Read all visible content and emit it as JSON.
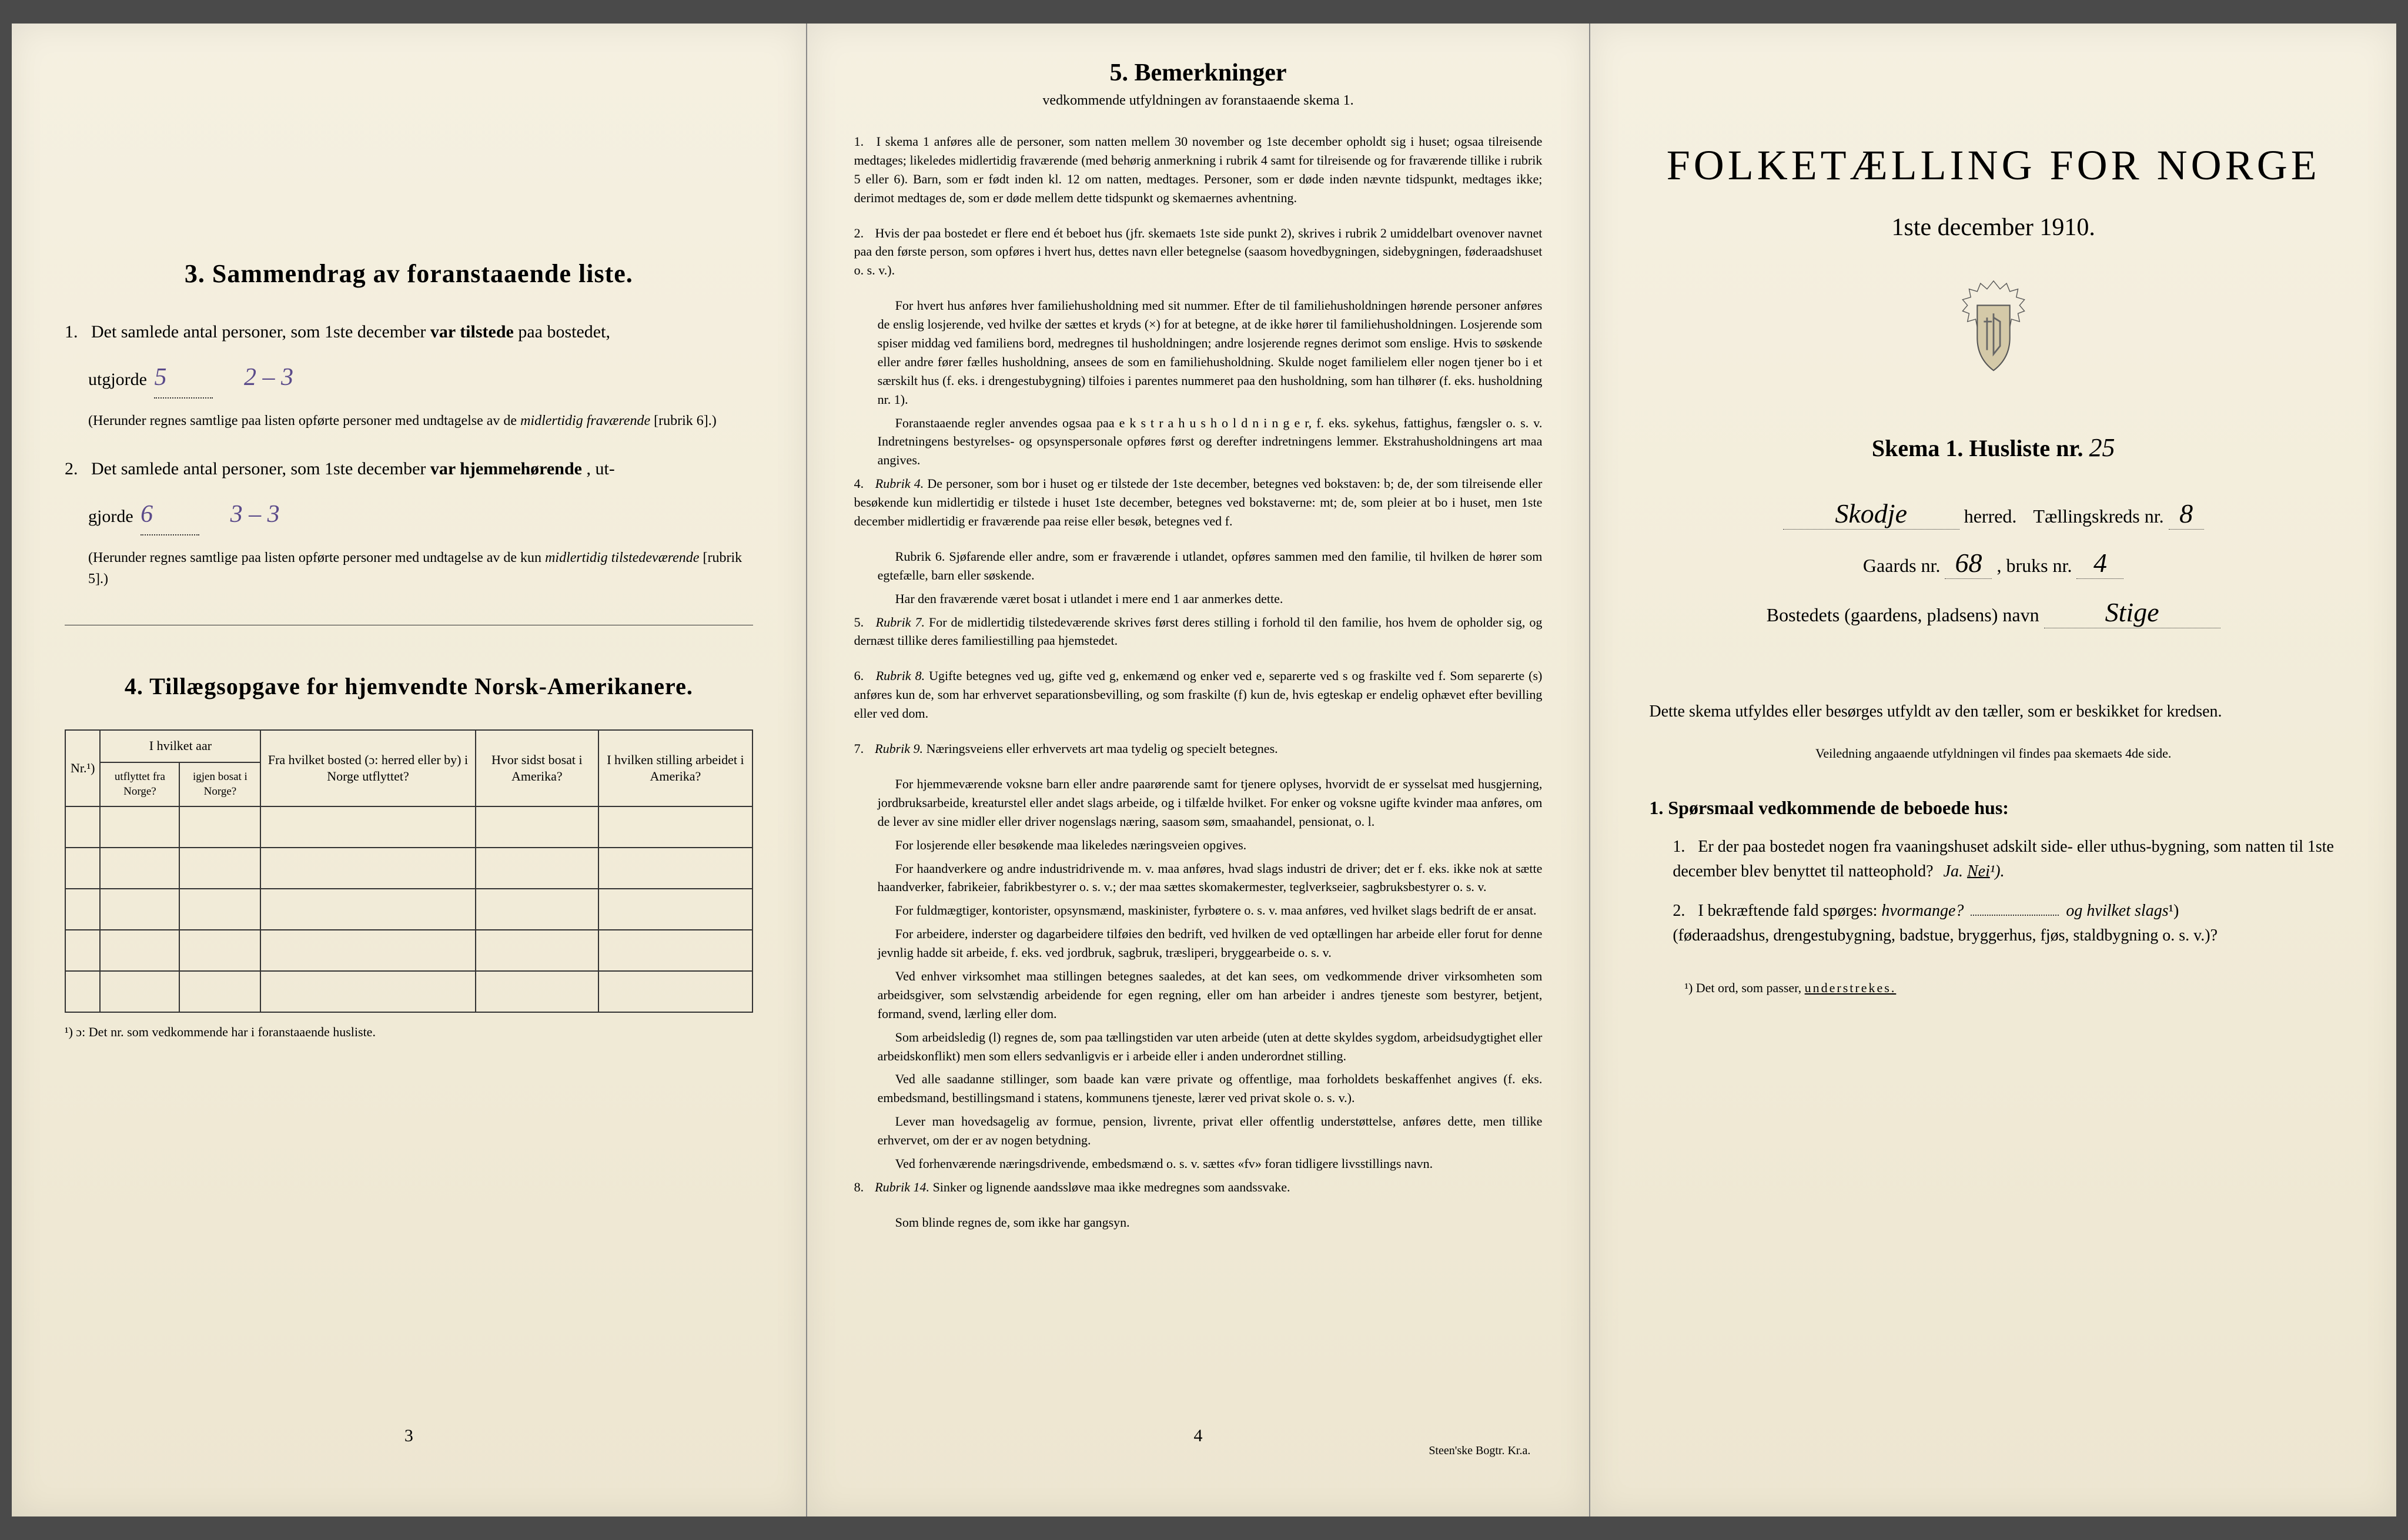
{
  "colors": {
    "paper": "#f2ecd9",
    "ink": "#1a1a1a",
    "handwriting": "#5a4a8a"
  },
  "left": {
    "section3": {
      "header": "3.   Sammendrag av foranstaaende liste.",
      "q1_prefix": "1.",
      "q1_text_a": "Det samlede antal personer, som 1ste december ",
      "q1_emphasis": "var tilstede",
      "q1_text_b": " paa bostedet,",
      "q1_line2": "utgjorde ",
      "q1_value": "5",
      "q1_hand2": "2 – 3",
      "q1_note": "(Herunder regnes samtlige paa listen opførte personer med undtagelse av de ",
      "q1_note_it": "midlertidig fraværende",
      "q1_note_end": " [rubrik 6].)",
      "q2_prefix": "2.",
      "q2_text_a": "Det samlede antal personer, som 1ste december ",
      "q2_emphasis": "var hjemmehørende",
      "q2_text_b": ", ut-",
      "q2_line2": "gjorde ",
      "q2_value": "6",
      "q2_hand2": "3 – 3",
      "q2_note": "(Herunder regnes samtlige paa listen opførte personer med undtagelse av de kun ",
      "q2_note_it": "midlertidig tilstedeværende",
      "q2_note_end": " [rubrik 5].)"
    },
    "section4": {
      "header": "4.  Tillægsopgave for hjemvendte Norsk-Amerikanere.",
      "th_nr": "Nr.¹)",
      "th_year_group": "I hvilket aar",
      "th_utflyttet": "utflyttet fra Norge?",
      "th_igjen": "igjen bosat i Norge?",
      "th_bosted": "Fra hvilket bosted (ɔ: herred eller by) i Norge utflyttet?",
      "th_sidst": "Hvor sidst bosat i Amerika?",
      "th_stilling": "I hvilken stilling arbeidet i Amerika?",
      "footnote": "¹) ɔ: Det nr. som vedkommende har i foranstaaende husliste.",
      "empty_rows": 5
    },
    "page_num": "3"
  },
  "middle": {
    "title_num": "5.",
    "title": "Bemerkninger",
    "subtitle": "vedkommende utfyldningen av foranstaaende skema 1.",
    "items": [
      {
        "n": "1.",
        "text": "I skema 1 anføres alle de personer, som natten mellem 30 november og 1ste december opholdt sig i huset; ogsaa tilreisende medtages; likeledes midlertidig fraværende (med behørig anmerkning i rubrik 4 samt for tilreisende og for fraværende tillike i rubrik 5 eller 6). Barn, som er født inden kl. 12 om natten, medtages. Personer, som er døde inden nævnte tidspunkt, medtages ikke; derimot medtages de, som er døde mellem dette tidspunkt og skemaernes avhentning."
      },
      {
        "n": "2.",
        "text": "Hvis der paa bostedet er flere end ét beboet hus (jfr. skemaets 1ste side punkt 2), skrives i rubrik 2 umiddelbart ovenover navnet paa den første person, som opføres i hvert hus, dettes navn eller betegnelse (saasom hovedbygningen, sidebygningen, føderaadshuset o. s. v.).",
        "paras": [
          "For hvert hus anføres hver familiehusholdning med sit nummer. Efter de til familiehusholdningen hørende personer anføres de enslig losjerende, ved hvilke der sættes et kryds (×) for at betegne, at de ikke hører til familiehusholdningen. Losjerende som spiser middag ved familiens bord, medregnes til husholdningen; andre losjerende regnes derimot som enslige. Hvis to søskende eller andre fører fælles husholdning, ansees de som en familiehusholdning. Skulde noget familielem eller nogen tjener bo i et særskilt hus (f. eks. i drengestubygning) tilfoies i parentes nummeret paa den husholdning, som han tilhører (f. eks. husholdning nr. 1).",
          "Foranstaaende regler anvendes ogsaa paa e k s t r a h u s h o l d n i n g e r, f. eks. sykehus, fattighus, fængsler o. s. v. Indretningens bestyrelses- og opsynspersonale opføres først og derefter indretningens lemmer. Ekstrahusholdningens art maa angives."
        ]
      },
      {
        "n": "4.",
        "rubrik": "Rubrik 4.",
        "text": "De personer, som bor i huset og er tilstede der 1ste december, betegnes ved bokstaven: b; de, der som tilreisende eller besøkende kun midlertidig er tilstede i huset 1ste december, betegnes ved bokstaverne: mt; de, som pleier at bo i huset, men 1ste december midlertidig er fraværende paa reise eller besøk, betegnes ved f.",
        "paras": [
          "Rubrik 6. Sjøfarende eller andre, som er fraværende i utlandet, opføres sammen med den familie, til hvilken de hører som egtefælle, barn eller søskende.",
          "Har den fraværende været bosat i utlandet i mere end 1 aar anmerkes dette."
        ]
      },
      {
        "n": "5.",
        "rubrik": "Rubrik 7.",
        "text": "For de midlertidig tilstedeværende skrives først deres stilling i forhold til den familie, hos hvem de opholder sig, og dernæst tillike deres familiestilling paa hjemstedet."
      },
      {
        "n": "6.",
        "rubrik": "Rubrik 8.",
        "text": "Ugifte betegnes ved ug, gifte ved g, enkemænd og enker ved e, separerte ved s og fraskilte ved f. Som separerte (s) anføres kun de, som har erhvervet separationsbevilling, og som fraskilte (f) kun de, hvis egteskap er endelig ophævet efter bevilling eller ved dom."
      },
      {
        "n": "7.",
        "rubrik": "Rubrik 9.",
        "text": "Næringsveiens eller erhvervets art maa tydelig og specielt betegnes.",
        "paras": [
          "For hjemmeværende voksne barn eller andre paarørende samt for tjenere oplyses, hvorvidt de er sysselsat med husgjerning, jordbruksarbeide, kreaturstel eller andet slags arbeide, og i tilfælde hvilket. For enker og voksne ugifte kvinder maa anføres, om de lever av sine midler eller driver nogenslags næring, saasom søm, smaahandel, pensionat, o. l.",
          "For losjerende eller besøkende maa likeledes næringsveien opgives.",
          "For haandverkere og andre industridrivende m. v. maa anføres, hvad slags industri de driver; det er f. eks. ikke nok at sætte haandverker, fabrikeier, fabrikbestyrer o. s. v.; der maa sættes skomakermester, teglverkseier, sagbruksbestyrer o. s. v.",
          "For fuldmægtiger, kontorister, opsynsmænd, maskinister, fyrbøtere o. s. v. maa anføres, ved hvilket slags bedrift de er ansat.",
          "For arbeidere, inderster og dagarbeidere tilføies den bedrift, ved hvilken de ved optællingen har arbeide eller forut for denne jevnlig hadde sit arbeide, f. eks. ved jordbruk, sagbruk, træsliperi, bryggearbeide o. s. v.",
          "Ved enhver virksomhet maa stillingen betegnes saaledes, at det kan sees, om vedkommende driver virksomheten som arbeidsgiver, som selvstændig arbeidende for egen regning, eller om han arbeider i andres tjeneste som bestyrer, betjent, formand, svend, lærling eller dom.",
          "Som arbeidsledig (l) regnes de, som paa tællingstiden var uten arbeide (uten at dette skyldes sygdom, arbeidsudygtighet eller arbeidskonflikt) men som ellers sedvanligvis er i arbeide eller i anden underordnet stilling.",
          "Ved alle saadanne stillinger, som baade kan være private og offentlige, maa forholdets beskaffenhet angives (f. eks. embedsmand, bestillingsmand i statens, kommunens tjeneste, lærer ved privat skole o. s. v.).",
          "Lever man hovedsagelig av formue, pension, livrente, privat eller offentlig understøttelse, anføres dette, men tillike erhvervet, om der er av nogen betydning.",
          "Ved forhenværende næringsdrivende, embedsmænd o. s. v. sættes «fv» foran tidligere livsstillings navn."
        ]
      },
      {
        "n": "8.",
        "rubrik": "Rubrik 14.",
        "text": "Sinker og lignende aandssløve maa ikke medregnes som aandssvake.",
        "paras": [
          "Som blinde regnes de, som ikke har gangsyn."
        ]
      }
    ],
    "page_num": "4",
    "printer": "Steen'ske Bogtr.  Kr.a."
  },
  "right": {
    "main_title": "FOLKETÆLLING FOR NORGE",
    "main_date": "1ste december 1910.",
    "skema_label": "Skema 1.   Husliste nr.",
    "skema_nr": "25",
    "herred_value": "Skodje",
    "herred_label": "herred.",
    "kreds_label": "Tællingskreds nr.",
    "kreds_nr": "8",
    "gaard_label": "Gaards nr.",
    "gaard_nr": "68",
    "bruk_label": ", bruks nr.",
    "bruk_nr": "4",
    "bosted_label": "Bostedets (gaardens, pladsens) navn",
    "bosted_value": "Stige",
    "instructions": "Dette skema utfyldes eller besørges utfyldt av den tæller, som er beskikket for kredsen.",
    "instr_sub": "Veiledning angaaende utfyldningen vil findes paa skemaets 4de side.",
    "q_header": "1. Spørsmaal vedkommende de beboede hus:",
    "q1_n": "1.",
    "q1_text": "Er der paa bostedet nogen fra vaaningshuset adskilt side- eller uthus-bygning, som natten til 1ste december blev benyttet til natteophold?",
    "q1_ja": "Ja.",
    "q1_nei": "Nei",
    "q1_sup": "¹).",
    "q2_n": "2.",
    "q2_text": "I bekræftende fald spørges: ",
    "q2_it1": "hvormange?",
    "q2_it2": "og hvilket slags",
    "q2_sup": "¹)",
    "q2_paren": "(føderaadshus, drengestubygning, badstue, bryggerhus, fjøs, staldbygning o. s. v.)?",
    "footnote": "¹) Det ord, som passer, ",
    "footnote_u": "understrekes."
  }
}
